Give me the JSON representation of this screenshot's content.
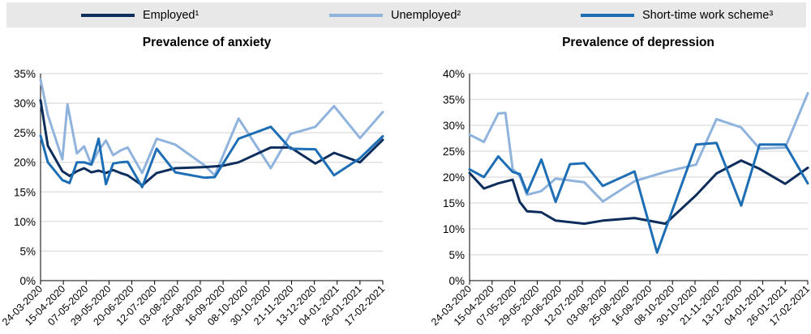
{
  "legend": {
    "items": [
      {
        "label": "Employed¹",
        "color": "#0d2d5c"
      },
      {
        "label": "Unemployed²",
        "color": "#8fb3dd"
      },
      {
        "label": "Short-time work scheme³",
        "color": "#1d6eb5"
      }
    ]
  },
  "chart_data": [
    {
      "type": "line",
      "title": "Prevalence of anxiety",
      "y_ticks": [
        "0%",
        "5%",
        "10%",
        "15%",
        "20%",
        "25%",
        "30%",
        "35%"
      ],
      "ylim": [
        0,
        35
      ],
      "x_ticks": [
        "24-03-2020",
        "15-04-2020",
        "07-05-2020",
        "29-05-2020",
        "20-06-2020",
        "12-07-2020",
        "03-08-2020",
        "25-08-2020",
        "16-09-2020",
        "08-10-2020",
        "30-10-2020",
        "21-11-2020",
        "13-12-2020",
        "04-01-2021",
        "26-01-2021",
        "17-02-2021"
      ],
      "x_range": [
        "2020-03-24",
        "2021-02-17"
      ],
      "grid": "horizontal",
      "series": [
        {
          "name": "Employed¹",
          "points": [
            [
              "2020-03-24",
              30.5
            ],
            [
              "2020-03-31",
              22.8
            ],
            [
              "2020-04-14",
              18.5
            ],
            [
              "2020-04-21",
              17.7
            ],
            [
              "2020-04-28",
              18.5
            ],
            [
              "2020-05-05",
              19.0
            ],
            [
              "2020-05-12",
              18.3
            ],
            [
              "2020-05-19",
              18.6
            ],
            [
              "2020-05-26",
              18.2
            ],
            [
              "2020-06-02",
              18.7
            ],
            [
              "2020-06-09",
              18.2
            ],
            [
              "2020-06-16",
              17.8
            ],
            [
              "2020-06-30",
              16.1
            ],
            [
              "2020-07-14",
              18.2
            ],
            [
              "2020-08-01",
              19.0
            ],
            [
              "2020-08-29",
              19.2
            ],
            [
              "2020-09-15",
              19.4
            ],
            [
              "2020-10-01",
              20.0
            ],
            [
              "2020-11-01",
              22.5
            ],
            [
              "2020-11-20",
              22.5
            ],
            [
              "2020-12-14",
              19.8
            ],
            [
              "2021-01-01",
              21.6
            ],
            [
              "2021-01-26",
              20.0
            ],
            [
              "2021-02-17",
              23.8
            ]
          ]
        },
        {
          "name": "Unemployed²",
          "points": [
            [
              "2020-03-24",
              34.0
            ],
            [
              "2020-03-31",
              28.0
            ],
            [
              "2020-04-14",
              20.5
            ],
            [
              "2020-04-19",
              29.8
            ],
            [
              "2020-04-28",
              21.5
            ],
            [
              "2020-05-05",
              22.7
            ],
            [
              "2020-05-12",
              19.6
            ],
            [
              "2020-05-19",
              22.0
            ],
            [
              "2020-05-26",
              23.7
            ],
            [
              "2020-06-02",
              21.2
            ],
            [
              "2020-06-09",
              22.0
            ],
            [
              "2020-06-16",
              22.5
            ],
            [
              "2020-06-30",
              18.2
            ],
            [
              "2020-07-14",
              24.0
            ],
            [
              "2020-08-01",
              23.0
            ],
            [
              "2020-08-29",
              19.5
            ],
            [
              "2020-09-08",
              17.8
            ],
            [
              "2020-10-01",
              27.4
            ],
            [
              "2020-11-01",
              19.0
            ],
            [
              "2020-11-20",
              24.8
            ],
            [
              "2020-12-14",
              26.0
            ],
            [
              "2021-01-01",
              29.5
            ],
            [
              "2021-01-26",
              24.1
            ],
            [
              "2021-02-17",
              28.5
            ]
          ]
        },
        {
          "name": "Short-time work scheme³",
          "points": [
            [
              "2020-03-24",
              24.5
            ],
            [
              "2020-03-31",
              20.0
            ],
            [
              "2020-04-14",
              17.0
            ],
            [
              "2020-04-21",
              16.5
            ],
            [
              "2020-04-28",
              20.0
            ],
            [
              "2020-05-05",
              20.0
            ],
            [
              "2020-05-12",
              19.6
            ],
            [
              "2020-05-19",
              24.0
            ],
            [
              "2020-05-26",
              16.3
            ],
            [
              "2020-06-02",
              19.8
            ],
            [
              "2020-06-09",
              20.0
            ],
            [
              "2020-06-16",
              20.1
            ],
            [
              "2020-06-30",
              15.8
            ],
            [
              "2020-07-14",
              22.3
            ],
            [
              "2020-08-01",
              18.3
            ],
            [
              "2020-08-29",
              17.4
            ],
            [
              "2020-09-08",
              17.5
            ],
            [
              "2020-10-01",
              24.0
            ],
            [
              "2020-11-01",
              26.0
            ],
            [
              "2020-11-20",
              22.3
            ],
            [
              "2020-12-14",
              22.2
            ],
            [
              "2021-01-01",
              17.8
            ],
            [
              "2021-01-26",
              20.7
            ],
            [
              "2021-02-17",
              24.4
            ]
          ]
        }
      ]
    },
    {
      "type": "line",
      "title": "Prevalence of depression",
      "y_ticks": [
        "0%",
        "5%",
        "10%",
        "15%",
        "20%",
        "25%",
        "30%",
        "35%",
        "40%"
      ],
      "ylim": [
        0,
        40
      ],
      "x_ticks": [
        "24-03-2020",
        "15-04-2020",
        "07-05-2020",
        "29-05-2020",
        "20-06-2020",
        "12-07-2020",
        "03-08-2020",
        "25-08-2020",
        "16-09-2020",
        "08-10-2020",
        "30-10-2020",
        "21-11-2020",
        "13-12-2020",
        "04-01-2021",
        "26-01-2021",
        "17-02-2021"
      ],
      "x_range": [
        "2020-03-24",
        "2021-02-17"
      ],
      "grid": "horizontal",
      "series": [
        {
          "name": "Employed¹",
          "points": [
            [
              "2020-03-24",
              20.8
            ],
            [
              "2020-04-07",
              17.8
            ],
            [
              "2020-04-21",
              18.8
            ],
            [
              "2020-05-05",
              19.5
            ],
            [
              "2020-05-12",
              15.2
            ],
            [
              "2020-05-19",
              13.4
            ],
            [
              "2020-06-02",
              13.2
            ],
            [
              "2020-06-16",
              11.6
            ],
            [
              "2020-07-14",
              11.0
            ],
            [
              "2020-08-01",
              11.6
            ],
            [
              "2020-09-01",
              12.1
            ],
            [
              "2020-10-01",
              11.0
            ],
            [
              "2020-10-31",
              16.5
            ],
            [
              "2020-11-20",
              20.7
            ],
            [
              "2020-12-14",
              23.2
            ],
            [
              "2021-01-01",
              21.6
            ],
            [
              "2021-01-26",
              18.7
            ],
            [
              "2021-02-17",
              21.8
            ]
          ]
        },
        {
          "name": "Unemployed²",
          "points": [
            [
              "2020-03-24",
              28.2
            ],
            [
              "2020-04-07",
              26.8
            ],
            [
              "2020-04-21",
              32.3
            ],
            [
              "2020-04-28",
              32.4
            ],
            [
              "2020-05-05",
              21.6
            ],
            [
              "2020-05-12",
              20.2
            ],
            [
              "2020-05-19",
              16.6
            ],
            [
              "2020-06-02",
              17.3
            ],
            [
              "2020-06-16",
              19.7
            ],
            [
              "2020-07-14",
              19.0
            ],
            [
              "2020-08-01",
              15.3
            ],
            [
              "2020-09-01",
              19.2
            ],
            [
              "2020-10-01",
              21.0
            ],
            [
              "2020-10-31",
              22.4
            ],
            [
              "2020-11-20",
              31.2
            ],
            [
              "2020-12-14",
              29.6
            ],
            [
              "2021-01-01",
              25.5
            ],
            [
              "2021-01-26",
              25.7
            ],
            [
              "2021-02-17",
              36.2
            ]
          ]
        },
        {
          "name": "Short-time work scheme³",
          "points": [
            [
              "2020-03-24",
              21.5
            ],
            [
              "2020-04-07",
              20.0
            ],
            [
              "2020-04-21",
              24.0
            ],
            [
              "2020-05-05",
              21.0
            ],
            [
              "2020-05-12",
              20.6
            ],
            [
              "2020-05-19",
              17.0
            ],
            [
              "2020-06-02",
              23.4
            ],
            [
              "2020-06-16",
              15.2
            ],
            [
              "2020-06-30",
              22.5
            ],
            [
              "2020-07-14",
              22.7
            ],
            [
              "2020-08-01",
              18.3
            ],
            [
              "2020-09-01",
              21.1
            ],
            [
              "2020-09-23",
              5.4
            ],
            [
              "2020-10-31",
              26.3
            ],
            [
              "2020-11-20",
              26.6
            ],
            [
              "2020-12-14",
              14.5
            ],
            [
              "2021-01-01",
              26.3
            ],
            [
              "2021-01-26",
              26.3
            ],
            [
              "2021-02-17",
              18.8
            ]
          ]
        }
      ]
    }
  ]
}
